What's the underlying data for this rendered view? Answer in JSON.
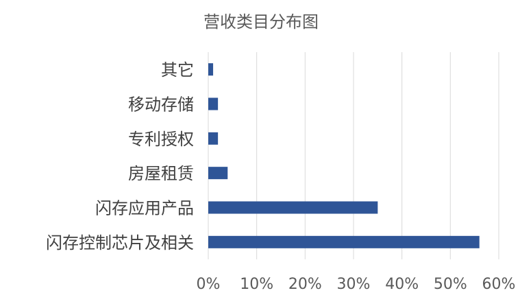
{
  "chart_data": {
    "type": "bar",
    "orientation": "horizontal",
    "title": "营收类目分布图",
    "categories": [
      "闪存控制芯片及相关",
      "闪存应用产品",
      "房屋租赁",
      "专利授权",
      "移动存储",
      "其它"
    ],
    "values": [
      56,
      35,
      4,
      2,
      2,
      1
    ],
    "xlabel": "",
    "ylabel": "",
    "xlim": [
      0,
      60
    ],
    "xticks": [
      "0%",
      "10%",
      "20%",
      "30%",
      "40%",
      "50%",
      "60%"
    ],
    "grid": "vertical",
    "legend": "none",
    "bar_color": "#2f5597",
    "grid_color": "#d9d9d9"
  }
}
